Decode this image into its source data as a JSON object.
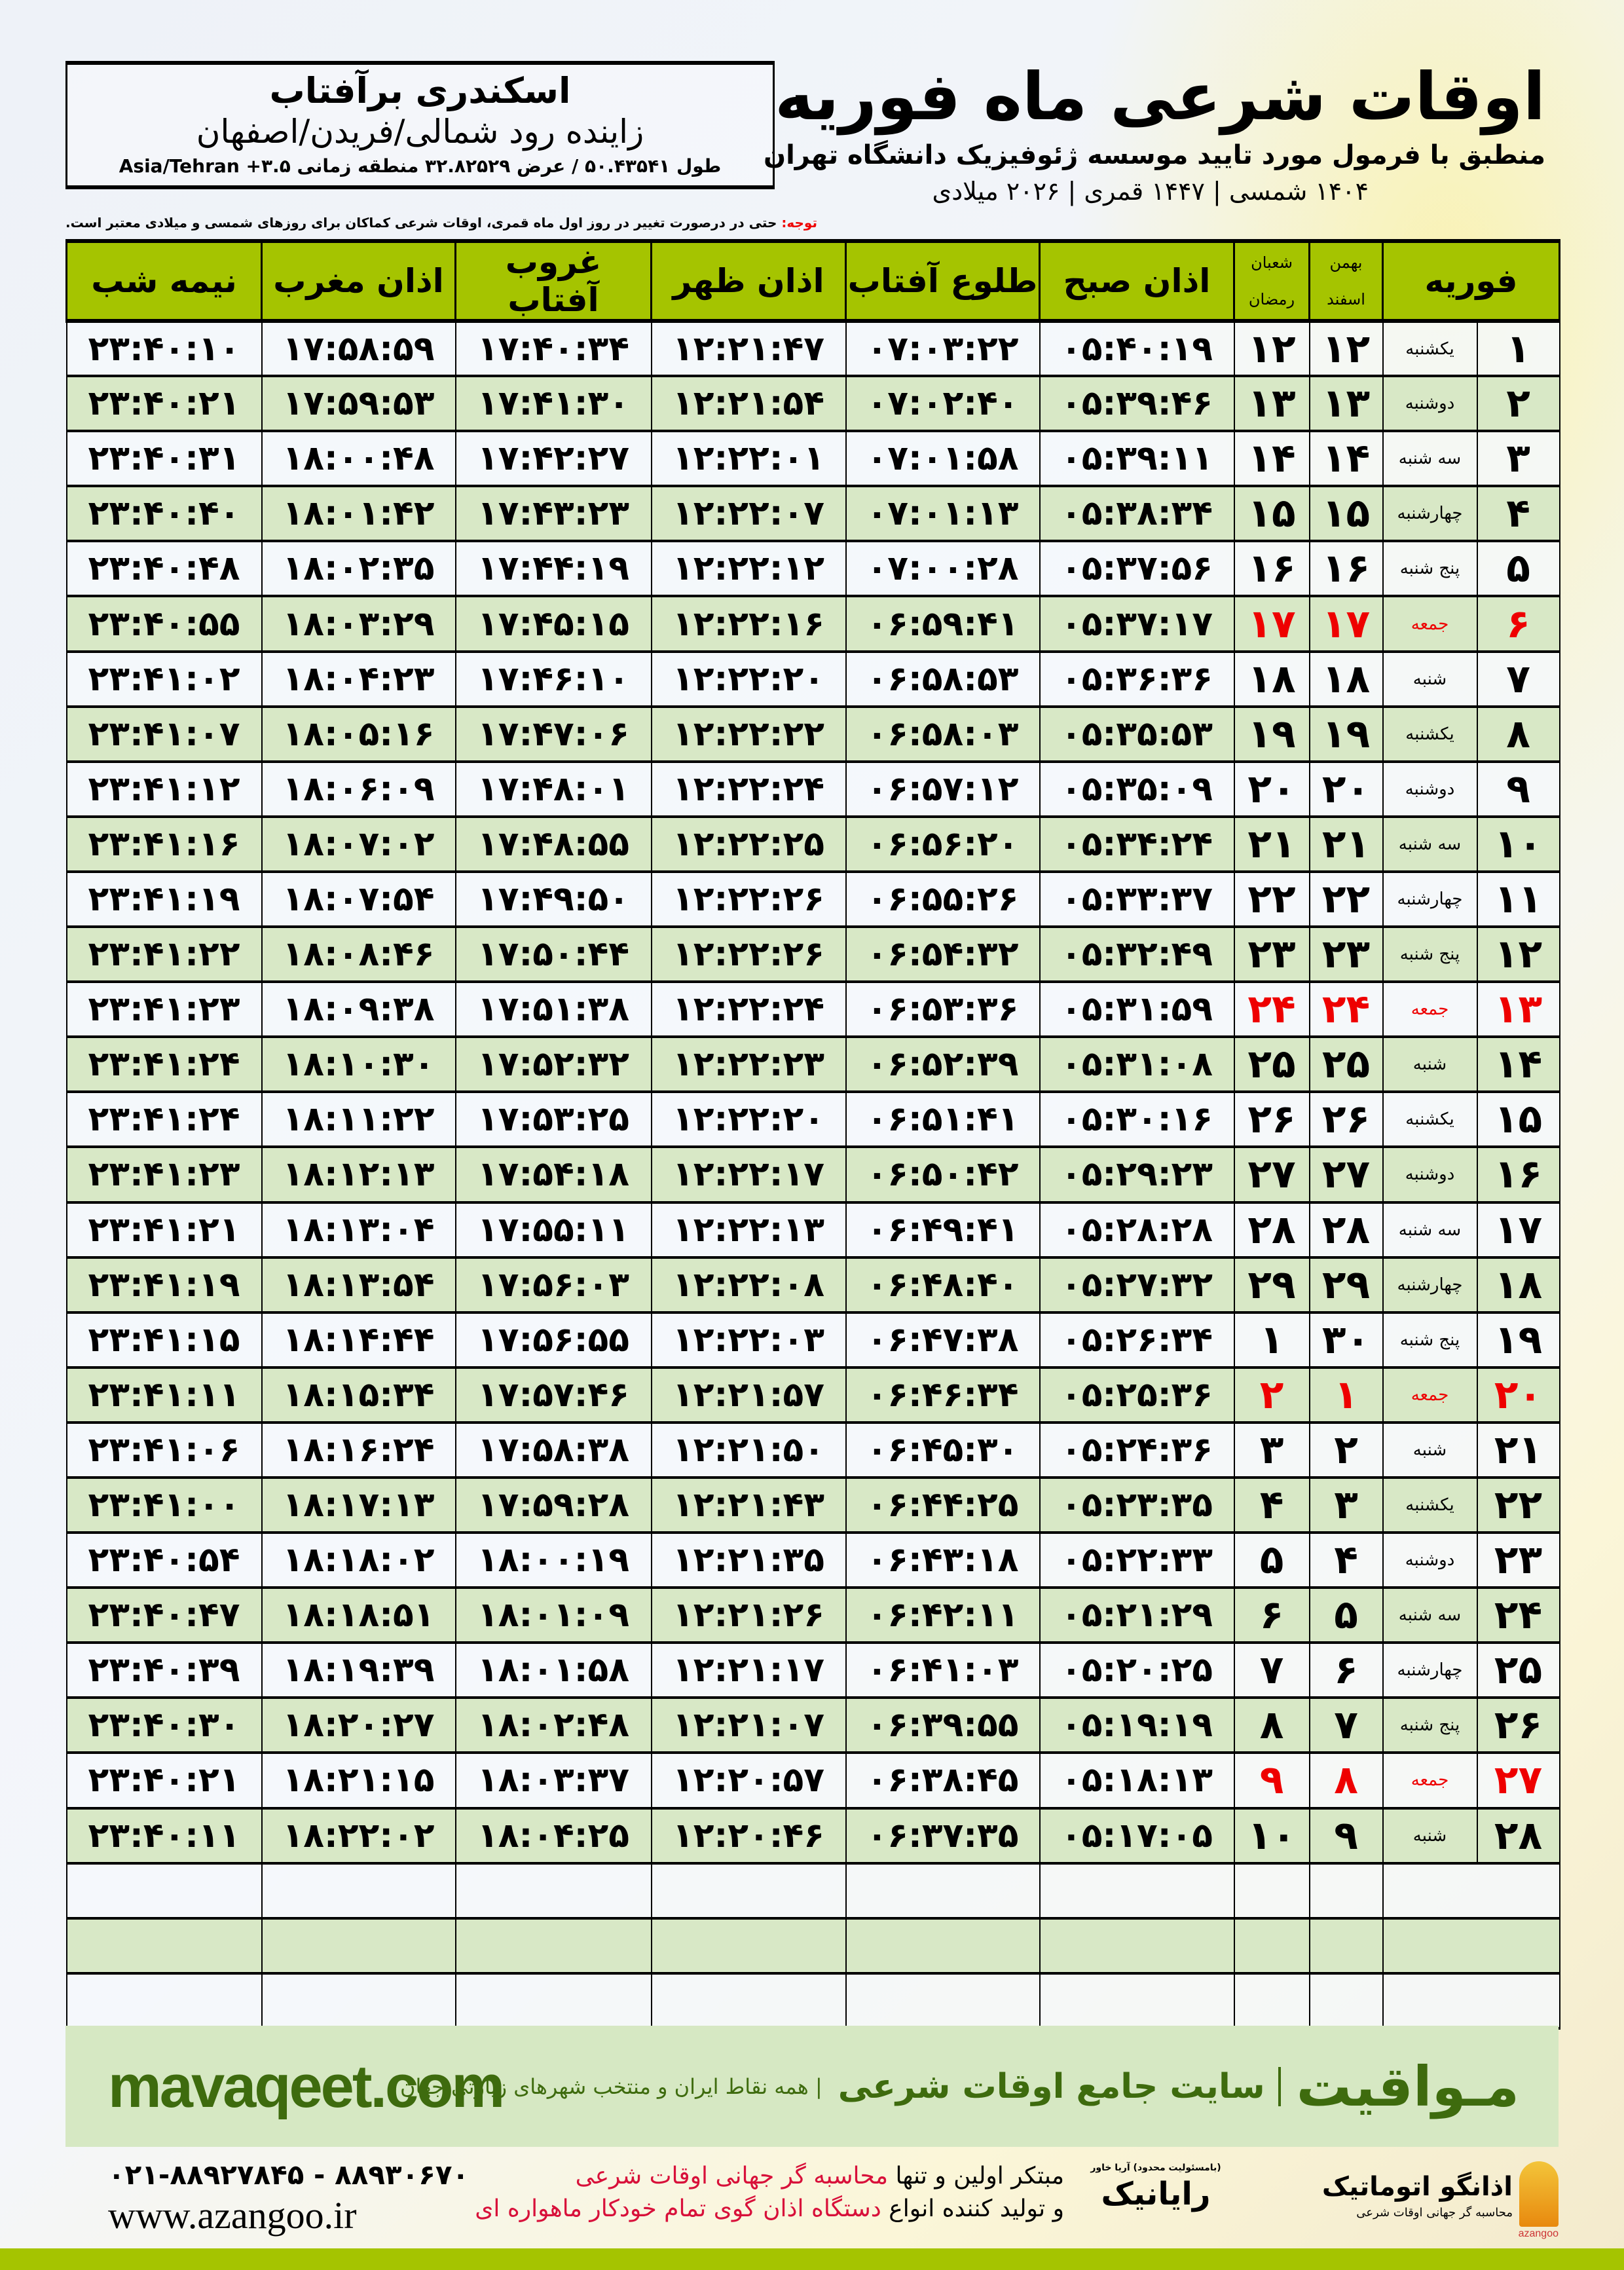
{
  "header": {
    "title": "اوقات شرعی ماه فوریه",
    "subtitle": "منطبق با فرمول مورد تایید موسسه ژئوفیزیک دانشگاه تهران",
    "years": "۱۴۰۴ شمسی | ۱۴۴۷ قمری | ۲۰۲۶ میلادی"
  },
  "location": {
    "name": "اسکندری برآفتاب",
    "region": "زاینده رود شمالی/فریدن/اصفهان",
    "coords": "طول ۵۰.۴۳۵۴۱ / عرض ۳۲.۸۲۵۲۹ منطقه زمانی ۳.۵+ Asia/Tehran"
  },
  "note": {
    "label": "توجه:",
    "text": " حتی در درصورت تغییر در روز اول ماه قمری، اوقات شرعی کماکان برای روزهای شمسی و میلادی معتبر است."
  },
  "table": {
    "headers": {
      "day": "فوریه",
      "solar_top": "بهمن",
      "solar_bottom": "اسفند",
      "lunar_top": "شعبان",
      "lunar_bottom": "رمضان",
      "fajr": "اذان صبح",
      "sunrise": "طلوع آفتاب",
      "dhuhr": "اذان ظهر",
      "sunset": "غروب آفتاب",
      "maghrib": "اذان مغرب",
      "midnight": "نیمه شب"
    },
    "rows": [
      {
        "d": "۱",
        "w": "یکشنبه",
        "s": "۱۲",
        "q": "۱۲",
        "t": [
          "۰۵:۴۰:۱۹",
          "۰۷:۰۳:۲۲",
          "۱۲:۲۱:۴۷",
          "۱۷:۴۰:۳۴",
          "۱۷:۵۸:۵۹",
          "۲۳:۴۰:۱۰"
        ]
      },
      {
        "d": "۲",
        "w": "دوشنبه",
        "s": "۱۳",
        "q": "۱۳",
        "t": [
          "۰۵:۳۹:۴۶",
          "۰۷:۰۲:۴۰",
          "۱۲:۲۱:۵۴",
          "۱۷:۴۱:۳۰",
          "۱۷:۵۹:۵۳",
          "۲۳:۴۰:۲۱"
        ]
      },
      {
        "d": "۳",
        "w": "سه شنبه",
        "s": "۱۴",
        "q": "۱۴",
        "t": [
          "۰۵:۳۹:۱۱",
          "۰۷:۰۱:۵۸",
          "۱۲:۲۲:۰۱",
          "۱۷:۴۲:۲۷",
          "۱۸:۰۰:۴۸",
          "۲۳:۴۰:۳۱"
        ]
      },
      {
        "d": "۴",
        "w": "چهارشنبه",
        "s": "۱۵",
        "q": "۱۵",
        "t": [
          "۰۵:۳۸:۳۴",
          "۰۷:۰۱:۱۳",
          "۱۲:۲۲:۰۷",
          "۱۷:۴۳:۲۳",
          "۱۸:۰۱:۴۲",
          "۲۳:۴۰:۴۰"
        ]
      },
      {
        "d": "۵",
        "w": "پنج شنبه",
        "s": "۱۶",
        "q": "۱۶",
        "t": [
          "۰۵:۳۷:۵۶",
          "۰۷:۰۰:۲۸",
          "۱۲:۲۲:۱۲",
          "۱۷:۴۴:۱۹",
          "۱۸:۰۲:۳۵",
          "۲۳:۴۰:۴۸"
        ]
      },
      {
        "d": "۶",
        "w": "جمعه",
        "s": "۱۷",
        "q": "۱۷",
        "friday": true,
        "t": [
          "۰۵:۳۷:۱۷",
          "۰۶:۵۹:۴۱",
          "۱۲:۲۲:۱۶",
          "۱۷:۴۵:۱۵",
          "۱۸:۰۳:۲۹",
          "۲۳:۴۰:۵۵"
        ]
      },
      {
        "d": "۷",
        "w": "شنبه",
        "s": "۱۸",
        "q": "۱۸",
        "t": [
          "۰۵:۳۶:۳۶",
          "۰۶:۵۸:۵۳",
          "۱۲:۲۲:۲۰",
          "۱۷:۴۶:۱۰",
          "۱۸:۰۴:۲۳",
          "۲۳:۴۱:۰۲"
        ]
      },
      {
        "d": "۸",
        "w": "یکشنبه",
        "s": "۱۹",
        "q": "۱۹",
        "t": [
          "۰۵:۳۵:۵۳",
          "۰۶:۵۸:۰۳",
          "۱۲:۲۲:۲۲",
          "۱۷:۴۷:۰۶",
          "۱۸:۰۵:۱۶",
          "۲۳:۴۱:۰۷"
        ]
      },
      {
        "d": "۹",
        "w": "دوشنبه",
        "s": "۲۰",
        "q": "۲۰",
        "t": [
          "۰۵:۳۵:۰۹",
          "۰۶:۵۷:۱۲",
          "۱۲:۲۲:۲۴",
          "۱۷:۴۸:۰۱",
          "۱۸:۰۶:۰۹",
          "۲۳:۴۱:۱۲"
        ]
      },
      {
        "d": "۱۰",
        "w": "سه شنبه",
        "s": "۲۱",
        "q": "۲۱",
        "t": [
          "۰۵:۳۴:۲۴",
          "۰۶:۵۶:۲۰",
          "۱۲:۲۲:۲۵",
          "۱۷:۴۸:۵۵",
          "۱۸:۰۷:۰۲",
          "۲۳:۴۱:۱۶"
        ]
      },
      {
        "d": "۱۱",
        "w": "چهارشنبه",
        "s": "۲۲",
        "q": "۲۲",
        "t": [
          "۰۵:۳۳:۳۷",
          "۰۶:۵۵:۲۶",
          "۱۲:۲۲:۲۶",
          "۱۷:۴۹:۵۰",
          "۱۸:۰۷:۵۴",
          "۲۳:۴۱:۱۹"
        ]
      },
      {
        "d": "۱۲",
        "w": "پنج شنبه",
        "s": "۲۳",
        "q": "۲۳",
        "t": [
          "۰۵:۳۲:۴۹",
          "۰۶:۵۴:۳۲",
          "۱۲:۲۲:۲۶",
          "۱۷:۵۰:۴۴",
          "۱۸:۰۸:۴۶",
          "۲۳:۴۱:۲۲"
        ]
      },
      {
        "d": "۱۳",
        "w": "جمعه",
        "s": "۲۴",
        "q": "۲۴",
        "friday": true,
        "t": [
          "۰۵:۳۱:۵۹",
          "۰۶:۵۳:۳۶",
          "۱۲:۲۲:۲۴",
          "۱۷:۵۱:۳۸",
          "۱۸:۰۹:۳۸",
          "۲۳:۴۱:۲۳"
        ]
      },
      {
        "d": "۱۴",
        "w": "شنبه",
        "s": "۲۵",
        "q": "۲۵",
        "t": [
          "۰۵:۳۱:۰۸",
          "۰۶:۵۲:۳۹",
          "۱۲:۲۲:۲۳",
          "۱۷:۵۲:۳۲",
          "۱۸:۱۰:۳۰",
          "۲۳:۴۱:۲۴"
        ]
      },
      {
        "d": "۱۵",
        "w": "یکشنبه",
        "s": "۲۶",
        "q": "۲۶",
        "t": [
          "۰۵:۳۰:۱۶",
          "۰۶:۵۱:۴۱",
          "۱۲:۲۲:۲۰",
          "۱۷:۵۳:۲۵",
          "۱۸:۱۱:۲۲",
          "۲۳:۴۱:۲۴"
        ]
      },
      {
        "d": "۱۶",
        "w": "دوشنبه",
        "s": "۲۷",
        "q": "۲۷",
        "t": [
          "۰۵:۲۹:۲۳",
          "۰۶:۵۰:۴۲",
          "۱۲:۲۲:۱۷",
          "۱۷:۵۴:۱۸",
          "۱۸:۱۲:۱۳",
          "۲۳:۴۱:۲۳"
        ]
      },
      {
        "d": "۱۷",
        "w": "سه شنبه",
        "s": "۲۸",
        "q": "۲۸",
        "t": [
          "۰۵:۲۸:۲۸",
          "۰۶:۴۹:۴۱",
          "۱۲:۲۲:۱۳",
          "۱۷:۵۵:۱۱",
          "۱۸:۱۳:۰۴",
          "۲۳:۴۱:۲۱"
        ]
      },
      {
        "d": "۱۸",
        "w": "چهارشنبه",
        "s": "۲۹",
        "q": "۲۹",
        "t": [
          "۰۵:۲۷:۳۲",
          "۰۶:۴۸:۴۰",
          "۱۲:۲۲:۰۸",
          "۱۷:۵۶:۰۳",
          "۱۸:۱۳:۵۴",
          "۲۳:۴۱:۱۹"
        ]
      },
      {
        "d": "۱۹",
        "w": "پنج شنبه",
        "s": "۳۰",
        "q": "۱",
        "t": [
          "۰۵:۲۶:۳۴",
          "۰۶:۴۷:۳۸",
          "۱۲:۲۲:۰۳",
          "۱۷:۵۶:۵۵",
          "۱۸:۱۴:۴۴",
          "۲۳:۴۱:۱۵"
        ]
      },
      {
        "d": "۲۰",
        "w": "جمعه",
        "s": "۱",
        "q": "۲",
        "friday": true,
        "t": [
          "۰۵:۲۵:۳۶",
          "۰۶:۴۶:۳۴",
          "۱۲:۲۱:۵۷",
          "۱۷:۵۷:۴۶",
          "۱۸:۱۵:۳۴",
          "۲۳:۴۱:۱۱"
        ]
      },
      {
        "d": "۲۱",
        "w": "شنبه",
        "s": "۲",
        "q": "۳",
        "t": [
          "۰۵:۲۴:۳۶",
          "۰۶:۴۵:۳۰",
          "۱۲:۲۱:۵۰",
          "۱۷:۵۸:۳۸",
          "۱۸:۱۶:۲۴",
          "۲۳:۴۱:۰۶"
        ]
      },
      {
        "d": "۲۲",
        "w": "یکشنبه",
        "s": "۳",
        "q": "۴",
        "t": [
          "۰۵:۲۳:۳۵",
          "۰۶:۴۴:۲۵",
          "۱۲:۲۱:۴۳",
          "۱۷:۵۹:۲۸",
          "۱۸:۱۷:۱۳",
          "۲۳:۴۱:۰۰"
        ]
      },
      {
        "d": "۲۳",
        "w": "دوشنبه",
        "s": "۴",
        "q": "۵",
        "t": [
          "۰۵:۲۲:۳۳",
          "۰۶:۴۳:۱۸",
          "۱۲:۲۱:۳۵",
          "۱۸:۰۰:۱۹",
          "۱۸:۱۸:۰۲",
          "۲۳:۴۰:۵۴"
        ]
      },
      {
        "d": "۲۴",
        "w": "سه شنبه",
        "s": "۵",
        "q": "۶",
        "t": [
          "۰۵:۲۱:۲۹",
          "۰۶:۴۲:۱۱",
          "۱۲:۲۱:۲۶",
          "۱۸:۰۱:۰۹",
          "۱۸:۱۸:۵۱",
          "۲۳:۴۰:۴۷"
        ]
      },
      {
        "d": "۲۵",
        "w": "چهارشنبه",
        "s": "۶",
        "q": "۷",
        "t": [
          "۰۵:۲۰:۲۵",
          "۰۶:۴۱:۰۳",
          "۱۲:۲۱:۱۷",
          "۱۸:۰۱:۵۸",
          "۱۸:۱۹:۳۹",
          "۲۳:۴۰:۳۹"
        ]
      },
      {
        "d": "۲۶",
        "w": "پنج شنبه",
        "s": "۷",
        "q": "۸",
        "t": [
          "۰۵:۱۹:۱۹",
          "۰۶:۳۹:۵۵",
          "۱۲:۲۱:۰۷",
          "۱۸:۰۲:۴۸",
          "۱۸:۲۰:۲۷",
          "۲۳:۴۰:۳۰"
        ]
      },
      {
        "d": "۲۷",
        "w": "جمعه",
        "s": "۸",
        "q": "۹",
        "friday": true,
        "t": [
          "۰۵:۱۸:۱۳",
          "۰۶:۳۸:۴۵",
          "۱۲:۲۰:۵۷",
          "۱۸:۰۳:۳۷",
          "۱۸:۲۱:۱۵",
          "۲۳:۴۰:۲۱"
        ]
      },
      {
        "d": "۲۸",
        "w": "شنبه",
        "s": "۹",
        "q": "۱۰",
        "t": [
          "۰۵:۱۷:۰۵",
          "۰۶:۳۷:۳۵",
          "۱۲:۲۰:۴۶",
          "۱۸:۰۴:۲۵",
          "۱۸:۲۲:۰۲",
          "۲۳:۴۰:۱۱"
        ]
      }
    ],
    "friday_color": "#ee0000",
    "header_color": "#a5c400"
  },
  "banner": {
    "brand": "مـواقیت",
    "site": "سایت جامع اوقات شرعی",
    "tagline": "| همه نقاط ایران و منتخب شهرهای زیارتی جهان",
    "url": "mavaqeet.com"
  },
  "footer": {
    "line1_a": "مبتکر اولین و تنها ",
    "line1_b": "محاسبه گر جهانی اوقات شرعی",
    "line2_a": "و تولید کننده انواع ",
    "line2_b": "دستگاه اذان گوی تمام خودکار ماهواره ای",
    "phone": "۰۲۱-۸۸۹۲۷۸۴۵ - ۸۸۹۳۰۶۷۰",
    "website": "www.azangoo.ir",
    "logo1": "رایانیک",
    "logo1_sub": "(بامسئولیت محدود) آریا خاور",
    "logo2": "اذانگو اتوماتیک",
    "logo2_sub": "محاسبه گر جهانی اوقات شرعی",
    "logo2_latin": "azangoo"
  }
}
